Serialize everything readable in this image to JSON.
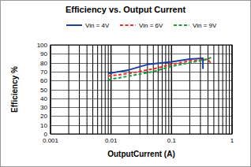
{
  "chart_data": {
    "type": "line",
    "title": "Efficiency vs. Output Current",
    "x_label": "OutputCurrent (A)",
    "y_label": "Efficiency %",
    "log": "x",
    "grid": true,
    "legend": "top",
    "xlim": [
      0.001,
      1
    ],
    "xticks": [
      0.001,
      0.01,
      0.1,
      1
    ],
    "ylim": [
      0,
      100
    ],
    "yticks": [
      0,
      10,
      20,
      30,
      40,
      50,
      60,
      70,
      80,
      90,
      100
    ],
    "series": [
      {
        "name": "Vin = 4V",
        "color": "#1f3f9f",
        "line_style": "solid",
        "x": [
          0.009,
          0.02,
          0.04,
          0.1,
          0.2,
          0.33,
          0.33
        ],
        "values": [
          68,
          72,
          78,
          81,
          84,
          85,
          73
        ]
      },
      {
        "name": "Vin = 6V",
        "color": "#e8312f",
        "line_style": "dashed",
        "x": [
          0.009,
          0.02,
          0.05,
          0.1,
          0.2,
          0.4,
          0.45
        ],
        "values": [
          65,
          68,
          73,
          78,
          82,
          84,
          79
        ]
      },
      {
        "name": "Vin = 9V",
        "color": "#1a9c3a",
        "line_style": "dashed",
        "x": [
          0.009,
          0.02,
          0.05,
          0.1,
          0.2,
          0.4,
          0.45
        ],
        "values": [
          61,
          65,
          70,
          76,
          80,
          84,
          86
        ]
      }
    ]
  }
}
